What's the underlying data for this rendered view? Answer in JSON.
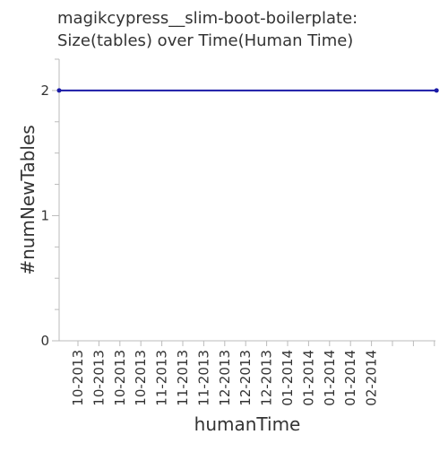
{
  "chart_data": {
    "type": "line",
    "title_line1": "magikcypress__slim-boot-boilerplate:",
    "title_line2": "Size(tables) over Time(Human Time)",
    "xlabel": "humanTime",
    "ylabel": "#numNewTables",
    "x_tick_labels": [
      "10-2013",
      "10-2013",
      "10-2013",
      "10-2013",
      "11-2013",
      "11-2013",
      "11-2013",
      "12-2013",
      "12-2013",
      "12-2013",
      "01-2014",
      "01-2014",
      "01-2014",
      "01-2014",
      "02-2014"
    ],
    "y_ticks": [
      0,
      1,
      2
    ],
    "ylim": [
      0,
      2.25
    ],
    "grid": false,
    "colors": {
      "line": "#1a1aa6",
      "axis": "#bbbbbb",
      "text": "#333333"
    },
    "series": [
      {
        "x_index": [
          0,
          18
        ],
        "values": [
          2,
          2
        ]
      }
    ]
  }
}
